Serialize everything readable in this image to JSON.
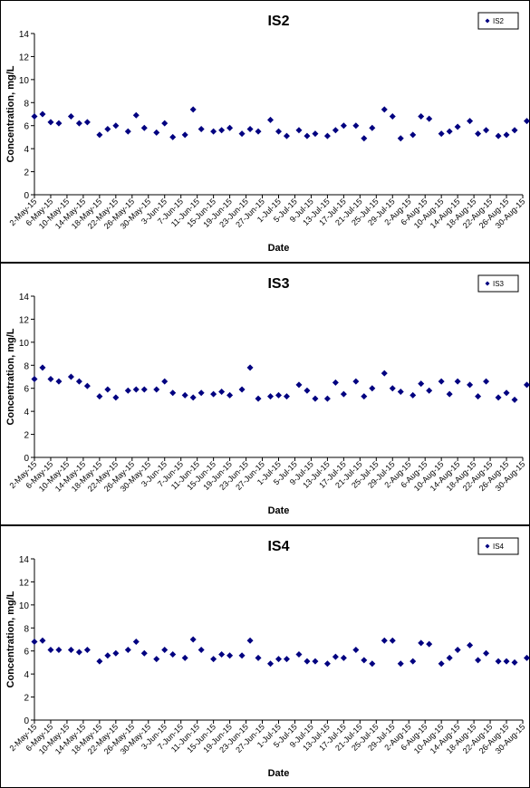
{
  "chart_data": [
    {
      "type": "scatter",
      "title": "IS2",
      "xlabel": "Date",
      "ylabel": "Concentration, mg/L",
      "ylim": [
        0,
        14
      ],
      "yticks": [
        0,
        2,
        4,
        6,
        8,
        10,
        12,
        14
      ],
      "grid": false,
      "legend": "top-right",
      "marker_color": "#000080",
      "x_tick_labels": [
        "2-May-15",
        "6-May-15",
        "10-May-15",
        "14-May-15",
        "18-May-15",
        "22-May-15",
        "26-May-15",
        "30-May-15",
        "3-Jun-15",
        "7-Jun-15",
        "11-Jun-15",
        "15-Jun-15",
        "19-Jun-15",
        "23-Jun-15",
        "27-Jun-15",
        "1-Jul-15",
        "5-Jul-15",
        "9-Jul-15",
        "13-Jul-15",
        "17-Jul-15",
        "21-Jul-15",
        "25-Jul-15",
        "29-Jul-15",
        "2-Aug-15",
        "6-Aug-15",
        "10-Aug-15",
        "14-Aug-15",
        "18-Aug-15",
        "22-Aug-15",
        "26-Aug-15",
        "30-Aug-15"
      ],
      "series": [
        {
          "name": "IS2",
          "x": [
            "2-May-15",
            "4-May-15",
            "6-May-15",
            "8-May-15",
            "11-May-15",
            "13-May-15",
            "15-May-15",
            "18-May-15",
            "20-May-15",
            "22-May-15",
            "25-May-15",
            "27-May-15",
            "29-May-15",
            "1-Jun-15",
            "3-Jun-15",
            "5-Jun-15",
            "8-Jun-15",
            "10-Jun-15",
            "12-Jun-15",
            "15-Jun-15",
            "17-Jun-15",
            "19-Jun-15",
            "22-Jun-15",
            "24-Jun-15",
            "26-Jun-15",
            "29-Jun-15",
            "1-Jul-15",
            "3-Jul-15",
            "6-Jul-15",
            "8-Jul-15",
            "10-Jul-15",
            "13-Jul-15",
            "15-Jul-15",
            "17-Jul-15",
            "20-Jul-15",
            "22-Jul-15",
            "24-Jul-15",
            "27-Jul-15",
            "29-Jul-15",
            "31-Jul-15",
            "3-Aug-15",
            "5-Aug-15",
            "7-Aug-15",
            "10-Aug-15",
            "12-Aug-15",
            "14-Aug-15",
            "17-Aug-15",
            "19-Aug-15",
            "21-Aug-15",
            "24-Aug-15",
            "26-Aug-15",
            "28-Aug-15",
            "31-Aug-15"
          ],
          "values": [
            6.8,
            7.0,
            6.3,
            6.2,
            6.8,
            6.2,
            6.3,
            5.2,
            5.7,
            6.0,
            5.5,
            6.9,
            5.8,
            5.4,
            6.2,
            5.0,
            5.2,
            7.4,
            5.7,
            5.5,
            5.6,
            5.8,
            5.3,
            5.7,
            5.5,
            6.5,
            5.5,
            5.1,
            5.6,
            5.1,
            5.3,
            5.1,
            5.6,
            6.0,
            6.0,
            4.9,
            5.8,
            7.4,
            6.8,
            4.9,
            5.2,
            6.8,
            6.6,
            5.3,
            5.5,
            5.9,
            6.4,
            5.3,
            5.6,
            5.1,
            5.2,
            5.6,
            6.4
          ]
        }
      ]
    },
    {
      "type": "scatter",
      "title": "IS3",
      "xlabel": "Date",
      "ylabel": "Concentration, mg/L",
      "ylim": [
        0,
        14
      ],
      "yticks": [
        0,
        2,
        4,
        6,
        8,
        10,
        12,
        14
      ],
      "grid": false,
      "legend": "top-right",
      "marker_color": "#000080",
      "x_tick_labels": [
        "2-May-15",
        "6-May-15",
        "10-May-15",
        "14-May-15",
        "18-May-15",
        "22-May-15",
        "26-May-15",
        "30-May-15",
        "3-Jun-15",
        "7-Jun-15",
        "11-Jun-15",
        "15-Jun-15",
        "19-Jun-15",
        "23-Jun-15",
        "27-Jun-15",
        "1-Jul-15",
        "5-Jul-15",
        "9-Jul-15",
        "13-Jul-15",
        "17-Jul-15",
        "21-Jul-15",
        "25-Jul-15",
        "29-Jul-15",
        "2-Aug-15",
        "6-Aug-15",
        "10-Aug-15",
        "14-Aug-15",
        "18-Aug-15",
        "22-Aug-15",
        "26-Aug-15",
        "30-Aug-15"
      ],
      "series": [
        {
          "name": "IS3",
          "x": [
            "2-May-15",
            "4-May-15",
            "6-May-15",
            "8-May-15",
            "11-May-15",
            "13-May-15",
            "15-May-15",
            "18-May-15",
            "20-May-15",
            "22-May-15",
            "25-May-15",
            "27-May-15",
            "29-May-15",
            "1-Jun-15",
            "3-Jun-15",
            "5-Jun-15",
            "8-Jun-15",
            "10-Jun-15",
            "12-Jun-15",
            "15-Jun-15",
            "17-Jun-15",
            "19-Jun-15",
            "22-Jun-15",
            "24-Jun-15",
            "26-Jun-15",
            "29-Jun-15",
            "1-Jul-15",
            "3-Jul-15",
            "6-Jul-15",
            "8-Jul-15",
            "10-Jul-15",
            "13-Jul-15",
            "15-Jul-15",
            "17-Jul-15",
            "20-Jul-15",
            "22-Jul-15",
            "24-Jul-15",
            "27-Jul-15",
            "29-Jul-15",
            "31-Jul-15",
            "3-Aug-15",
            "5-Aug-15",
            "7-Aug-15",
            "10-Aug-15",
            "12-Aug-15",
            "14-Aug-15",
            "17-Aug-15",
            "19-Aug-15",
            "21-Aug-15",
            "24-Aug-15",
            "26-Aug-15",
            "28-Aug-15",
            "31-Aug-15"
          ],
          "values": [
            6.8,
            7.8,
            6.8,
            6.6,
            7.0,
            6.6,
            6.2,
            5.3,
            5.9,
            5.2,
            5.8,
            5.9,
            5.9,
            5.9,
            6.6,
            5.6,
            5.4,
            5.2,
            5.6,
            5.5,
            5.7,
            5.4,
            5.9,
            7.8,
            5.1,
            5.3,
            5.4,
            5.3,
            6.3,
            5.8,
            5.1,
            5.1,
            6.5,
            5.5,
            6.6,
            5.3,
            6.0,
            7.3,
            6.0,
            5.7,
            5.4,
            6.4,
            5.8,
            6.6,
            5.5,
            6.6,
            6.3,
            5.3,
            6.6,
            5.2,
            5.6,
            5.0,
            6.3
          ]
        }
      ]
    },
    {
      "type": "scatter",
      "title": "IS4",
      "xlabel": "Date",
      "ylabel": "Concentration, mg/L",
      "ylim": [
        0,
        14
      ],
      "yticks": [
        0,
        2,
        4,
        6,
        8,
        10,
        12,
        14
      ],
      "grid": false,
      "legend": "top-right",
      "marker_color": "#000080",
      "x_tick_labels": [
        "2-May-15",
        "6-May-15",
        "10-May-15",
        "14-May-15",
        "18-May-15",
        "22-May-15",
        "26-May-15",
        "30-May-15",
        "3-Jun-15",
        "7-Jun-15",
        "11-Jun-15",
        "15-Jun-15",
        "19-Jun-15",
        "23-Jun-15",
        "27-Jun-15",
        "1-Jul-15",
        "5-Jul-15",
        "9-Jul-15",
        "13-Jul-15",
        "17-Jul-15",
        "21-Jul-15",
        "25-Jul-15",
        "29-Jul-15",
        "2-Aug-15",
        "6-Aug-15",
        "10-Aug-15",
        "14-Aug-15",
        "18-Aug-15",
        "22-Aug-15",
        "26-Aug-15",
        "30-Aug-15"
      ],
      "series": [
        {
          "name": "IS4",
          "x": [
            "2-May-15",
            "4-May-15",
            "6-May-15",
            "8-May-15",
            "11-May-15",
            "13-May-15",
            "15-May-15",
            "18-May-15",
            "20-May-15",
            "22-May-15",
            "25-May-15",
            "27-May-15",
            "29-May-15",
            "1-Jun-15",
            "3-Jun-15",
            "5-Jun-15",
            "8-Jun-15",
            "10-Jun-15",
            "12-Jun-15",
            "15-Jun-15",
            "17-Jun-15",
            "19-Jun-15",
            "22-Jun-15",
            "24-Jun-15",
            "26-Jun-15",
            "29-Jun-15",
            "1-Jul-15",
            "3-Jul-15",
            "6-Jul-15",
            "8-Jul-15",
            "10-Jul-15",
            "13-Jul-15",
            "15-Jul-15",
            "17-Jul-15",
            "20-Jul-15",
            "22-Jul-15",
            "24-Jul-15",
            "27-Jul-15",
            "29-Jul-15",
            "31-Jul-15",
            "3-Aug-15",
            "5-Aug-15",
            "7-Aug-15",
            "10-Aug-15",
            "12-Aug-15",
            "14-Aug-15",
            "17-Aug-15",
            "19-Aug-15",
            "21-Aug-15",
            "24-Aug-15",
            "26-Aug-15",
            "28-Aug-15",
            "31-Aug-15"
          ],
          "values": [
            6.8,
            6.9,
            6.1,
            6.1,
            6.1,
            5.9,
            6.1,
            5.1,
            5.6,
            5.8,
            6.1,
            6.8,
            5.8,
            5.3,
            6.1,
            5.7,
            5.4,
            7.0,
            6.1,
            5.3,
            5.7,
            5.6,
            5.6,
            6.9,
            5.4,
            4.9,
            5.3,
            5.3,
            5.7,
            5.1,
            5.1,
            4.9,
            5.5,
            5.4,
            6.1,
            5.2,
            4.9,
            6.9,
            6.9,
            4.9,
            5.1,
            6.7,
            6.6,
            4.9,
            5.4,
            6.1,
            6.5,
            5.2,
            5.8,
            5.1,
            5.1,
            5.0,
            5.4
          ]
        }
      ]
    }
  ]
}
